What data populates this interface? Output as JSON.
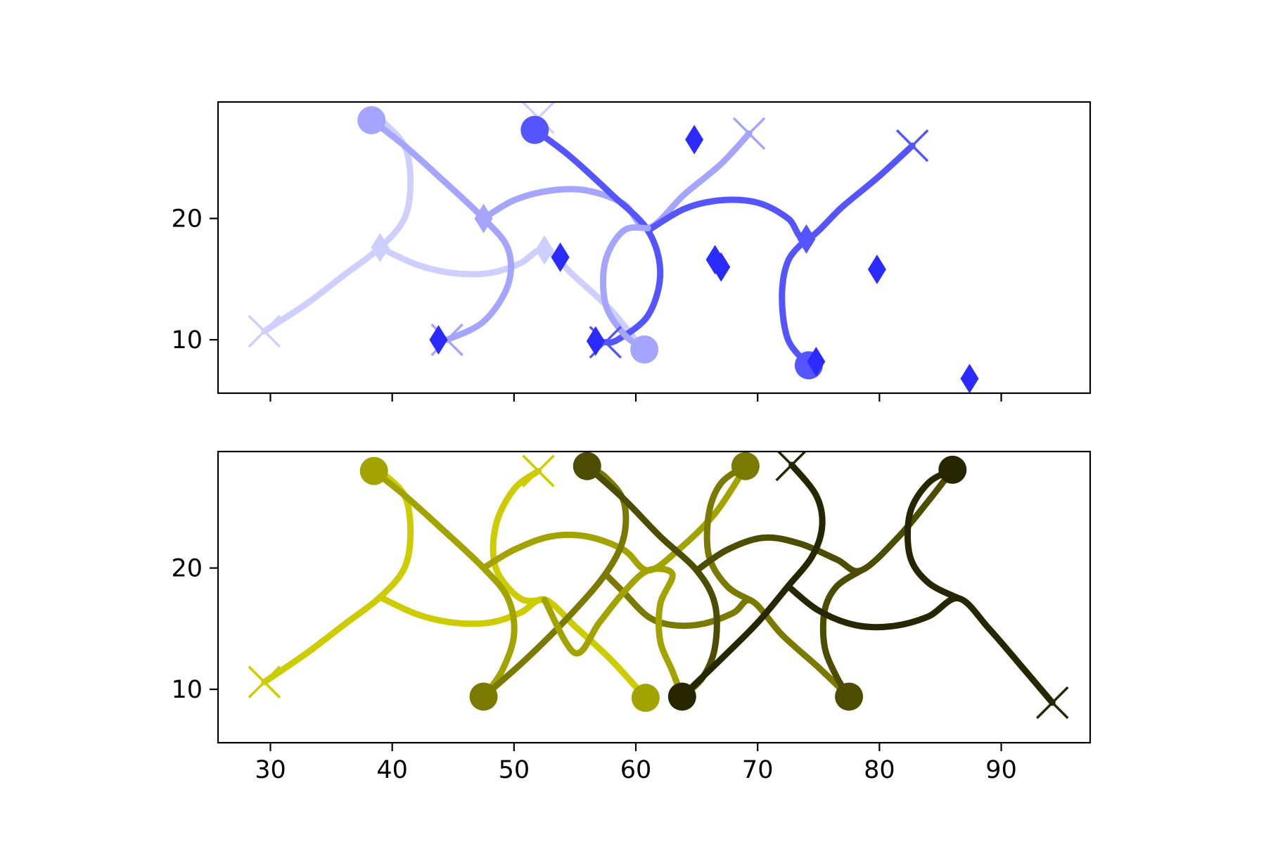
{
  "chart_data": [
    {
      "type": "line",
      "title": "",
      "xlabel": "",
      "ylabel": "",
      "xlim": [
        25.7,
        97.3
      ],
      "ylim": [
        5.6,
        29.6
      ],
      "xticks": [
        30,
        40,
        50,
        60,
        70,
        80,
        90
      ],
      "show_xtick_labels": false,
      "yticks": [
        10,
        20
      ],
      "ytick_labels": [
        "10",
        "20"
      ],
      "grid": false,
      "legend": "none",
      "series": [
        {
          "color": "#cfcfff",
          "points": [
            [
              29.5,
              10.7
            ],
            [
              33,
              13
            ],
            [
              36,
              15.3
            ],
            [
              39,
              17.6
            ],
            [
              41,
              20
            ],
            [
              41.5,
              23
            ],
            [
              41,
              26
            ],
            [
              39,
              28.2
            ]
          ],
          "extra_path": [
            [
              39,
              17.6
            ],
            [
              42,
              16.2
            ],
            [
              45,
              15.5
            ],
            [
              48,
              15.5
            ],
            [
              50.5,
              16.3
            ],
            [
              52.5,
              17.4
            ],
            [
              55,
              15.2
            ],
            [
              58,
              12.4
            ],
            [
              60.5,
              9.3
            ]
          ],
          "markers": [
            {
              "x": 29.5,
              "y": 10.7,
              "shape": "x"
            },
            {
              "x": 39,
              "y": 17.6,
              "shape": "diamond"
            },
            {
              "x": 52.5,
              "y": 17.4,
              "shape": "diamond"
            },
            {
              "x": 52,
              "y": 28.3,
              "shape": "x"
            }
          ]
        },
        {
          "color": "#a5a5ff",
          "points": [
            [
              38.3,
              28.1
            ],
            [
              41,
              26
            ],
            [
              44,
              23.3
            ],
            [
              47.5,
              20
            ],
            [
              49.5,
              17.5
            ],
            [
              49.5,
              14.5
            ],
            [
              47.5,
              11.5
            ],
            [
              44.5,
              10
            ]
          ],
          "extra_path": [
            [
              47.5,
              20
            ],
            [
              50,
              21.5
            ],
            [
              53,
              22.3
            ],
            [
              56,
              22.3
            ],
            [
              59,
              21.2
            ],
            [
              61,
              19.2
            ],
            [
              64,
              22
            ],
            [
              67,
              24.5
            ],
            [
              69.3,
              27
            ]
          ],
          "markers": [
            {
              "x": 38.3,
              "y": 28.1,
              "shape": "circle"
            },
            {
              "x": 44.5,
              "y": 10,
              "shape": "x"
            },
            {
              "x": 47.5,
              "y": 20,
              "shape": "diamond"
            },
            {
              "x": 69.3,
              "y": 27,
              "shape": "x"
            }
          ]
        },
        {
          "color": "#5555ff",
          "points": [
            [
              51.7,
              27.3
            ],
            [
              54.5,
              25.2
            ],
            [
              58,
              22
            ],
            [
              61,
              19
            ],
            [
              62,
              15.5
            ],
            [
              61,
              12
            ],
            [
              58.5,
              10
            ],
            [
              57.5,
              9.8
            ]
          ],
          "extra_path": [
            [
              61,
              19
            ],
            [
              64,
              20.8
            ],
            [
              67,
              21.5
            ],
            [
              70,
              21.3
            ],
            [
              72.5,
              20
            ],
            [
              74,
              18.3
            ],
            [
              77,
              21
            ],
            [
              80,
              23.5
            ],
            [
              82.7,
              26
            ]
          ],
          "markers": [
            {
              "x": 51.7,
              "y": 27.3,
              "shape": "circle"
            },
            {
              "x": 57.5,
              "y": 9.8,
              "shape": "x"
            },
            {
              "x": 74,
              "y": 18.3,
              "shape": "diamond"
            },
            {
              "x": 82.7,
              "y": 26,
              "shape": "x"
            }
          ]
        },
        {
          "color": "#a5a5ff",
          "points": [
            [
              60.7,
              9.2
            ],
            [
              59,
              10.5
            ],
            [
              57.5,
              13
            ],
            [
              57.5,
              16.5
            ],
            [
              59,
              19
            ],
            [
              61,
              19.2
            ]
          ],
          "markers": [
            {
              "x": 60.7,
              "y": 9.2,
              "shape": "circle"
            }
          ]
        },
        {
          "color": "#5555ff",
          "points": [
            [
              74.2,
              7.9
            ],
            [
              72.5,
              10
            ],
            [
              72,
              13.5
            ],
            [
              72.5,
              16.5
            ],
            [
              74,
              18.3
            ]
          ],
          "markers": [
            {
              "x": 74.2,
              "y": 7.9,
              "shape": "circle"
            }
          ]
        },
        {
          "color": "#2b2bff",
          "points": [],
          "markers": [
            {
              "x": 64.8,
              "y": 26.5,
              "shape": "diamond"
            },
            {
              "x": 53.8,
              "y": 16.8,
              "shape": "diamond"
            },
            {
              "x": 66.5,
              "y": 16.6,
              "shape": "diamond"
            },
            {
              "x": 67.0,
              "y": 16.0,
              "shape": "diamond"
            },
            {
              "x": 43.8,
              "y": 10.0,
              "shape": "diamond"
            },
            {
              "x": 56.7,
              "y": 9.9,
              "shape": "diamond"
            },
            {
              "x": 79.8,
              "y": 15.8,
              "shape": "diamond"
            },
            {
              "x": 87.4,
              "y": 6.8,
              "shape": "diamond"
            },
            {
              "x": 74.8,
              "y": 8.2,
              "shape": "diamond"
            }
          ]
        }
      ]
    },
    {
      "type": "line",
      "title": "",
      "xlabel": "",
      "ylabel": "",
      "xlim": [
        25.7,
        97.3
      ],
      "ylim": [
        5.6,
        29.6
      ],
      "xticks": [
        30,
        40,
        50,
        60,
        70,
        80,
        90
      ],
      "xtick_labels": [
        "30",
        "40",
        "50",
        "60",
        "70",
        "80",
        "90"
      ],
      "show_xtick_labels": true,
      "yticks": [
        10,
        20
      ],
      "ytick_labels": [
        "10",
        "20"
      ],
      "grid": false,
      "legend": "none",
      "series": [
        {
          "color": "#cccc00",
          "points": [
            [
              29.5,
              10.6
            ],
            [
              33,
              13
            ],
            [
              36,
              15.3
            ],
            [
              39,
              17.6
            ],
            [
              41,
              20
            ],
            [
              41.5,
              23
            ],
            [
              41,
              26
            ],
            [
              39,
              28
            ]
          ],
          "extra_path": [
            [
              39,
              17.6
            ],
            [
              42,
              16.2
            ],
            [
              45,
              15.5
            ],
            [
              48,
              15.5
            ],
            [
              50.5,
              16.3
            ],
            [
              52.5,
              17.4
            ],
            [
              55,
              15.2
            ],
            [
              58,
              12.4
            ],
            [
              60.8,
              9.3
            ]
          ],
          "markers": [
            {
              "x": 29.5,
              "y": 10.6,
              "shape": "x"
            },
            {
              "x": 52,
              "y": 28,
              "shape": "x"
            }
          ]
        },
        {
          "color": "#cccc00",
          "points": [
            [
              52,
              28
            ],
            [
              50,
              26.5
            ],
            [
              48.5,
              23.5
            ],
            [
              48.5,
              20
            ],
            [
              50.5,
              17.5
            ],
            [
              52.5,
              17.4
            ]
          ],
          "markers": []
        },
        {
          "color": "#a3a300",
          "points": [
            [
              38.5,
              28
            ],
            [
              41,
              26
            ],
            [
              44,
              23.3
            ],
            [
              47.5,
              20
            ],
            [
              49.5,
              17.5
            ],
            [
              50,
              14.5
            ],
            [
              49,
              11.5
            ],
            [
              47.5,
              9.4
            ]
          ],
          "extra_path": [
            [
              47.5,
              20
            ],
            [
              50,
              21.5
            ],
            [
              53,
              22.6
            ],
            [
              56,
              22.6
            ],
            [
              59,
              21.5
            ],
            [
              61,
              19.8
            ],
            [
              63.5,
              21.5
            ],
            [
              66.5,
              24.5
            ],
            [
              69,
              28.3
            ]
          ],
          "markers": [
            {
              "x": 38.5,
              "y": 28,
              "shape": "circle"
            },
            {
              "x": 60.8,
              "y": 9.3,
              "shape": "circle"
            }
          ]
        },
        {
          "color": "#7a7a00",
          "points": [
            [
              47.5,
              9.4
            ],
            [
              51,
              12.5
            ],
            [
              54.5,
              16
            ],
            [
              57.5,
              19.5
            ],
            [
              59,
              22.5
            ],
            [
              59,
              25.5
            ],
            [
              57.5,
              27.5
            ],
            [
              56,
              28.4
            ]
          ],
          "extra_path": [
            [
              57.5,
              19.5
            ],
            [
              59,
              18
            ],
            [
              61,
              16
            ],
            [
              63,
              15.3
            ],
            [
              65.5,
              15.4
            ],
            [
              68,
              16.3
            ],
            [
              69.5,
              17.3
            ],
            [
              72,
              14.5
            ],
            [
              75,
              11.8
            ],
            [
              77.5,
              9.4
            ]
          ],
          "markers": [
            {
              "x": 47.5,
              "y": 9.4,
              "shape": "circle"
            },
            {
              "x": 69,
              "y": 28.4,
              "shape": "circle"
            }
          ]
        },
        {
          "color": "#7a7a00",
          "points": [
            [
              69,
              28.4
            ],
            [
              67,
              27
            ],
            [
              66,
              24.5
            ],
            [
              66,
              21
            ],
            [
              67.5,
              18.5
            ],
            [
              69.5,
              17.3
            ]
          ],
          "markers": []
        },
        {
          "color": "#a3a300",
          "points": [
            [
              63.8,
              9.4
            ],
            [
              63,
              11.5
            ],
            [
              62,
              14
            ],
            [
              62,
              17
            ],
            [
              63,
              19.5
            ],
            [
              61,
              19.8
            ],
            [
              59,
              18
            ],
            [
              57,
              15.5
            ],
            [
              55,
              13
            ],
            [
              52.5,
              17.4
            ]
          ],
          "markers": []
        },
        {
          "color": "#4d4d00",
          "points": [
            [
              56,
              28.4
            ],
            [
              59,
              25.7
            ],
            [
              62,
              22.6
            ],
            [
              65,
              19.8
            ],
            [
              66.5,
              17
            ],
            [
              66.5,
              13.5
            ],
            [
              65.5,
              11
            ],
            [
              63.8,
              9.4
            ]
          ],
          "extra_path": [
            [
              65,
              19.8
            ],
            [
              67.5,
              21.5
            ],
            [
              70.5,
              22.5
            ],
            [
              73.5,
              22
            ],
            [
              76.5,
              20.7
            ],
            [
              78.5,
              19.8
            ],
            [
              81.5,
              22.5
            ],
            [
              84,
              25.5
            ],
            [
              86,
              28.1
            ]
          ],
          "markers": [
            {
              "x": 56,
              "y": 28.4,
              "shape": "circle"
            },
            {
              "x": 77.5,
              "y": 9.4,
              "shape": "circle"
            }
          ]
        },
        {
          "color": "#4d4d00",
          "points": [
            [
              77.5,
              9.4
            ],
            [
              76.5,
              11
            ],
            [
              75.5,
              13.5
            ],
            [
              75.5,
              16.5
            ],
            [
              76.5,
              18.5
            ],
            [
              78.5,
              19.8
            ]
          ],
          "markers": []
        },
        {
          "color": "#262600",
          "points": [
            [
              63.8,
              9.4
            ],
            [
              67,
              12.5
            ],
            [
              70,
              15.5
            ],
            [
              72.5,
              18.5
            ],
            [
              74.5,
              21
            ],
            [
              75.3,
              23.5
            ],
            [
              74.8,
              26
            ],
            [
              72.8,
              28.5
            ]
          ],
          "extra_path": [
            [
              72.5,
              18.5
            ],
            [
              75,
              16.5
            ],
            [
              78,
              15.3
            ],
            [
              81,
              15.2
            ],
            [
              84,
              16
            ],
            [
              86.5,
              17.5
            ],
            [
              89,
              15
            ],
            [
              92,
              11.5
            ],
            [
              94.2,
              8.9
            ]
          ],
          "markers": [
            {
              "x": 63.8,
              "y": 9.4,
              "shape": "circle"
            },
            {
              "x": 86,
              "y": 28.1,
              "shape": "circle"
            },
            {
              "x": 72.8,
              "y": 28.5,
              "shape": "x"
            },
            {
              "x": 94.2,
              "y": 8.9,
              "shape": "x"
            }
          ]
        },
        {
          "color": "#262600",
          "points": [
            [
              86,
              28.1
            ],
            [
              84,
              27
            ],
            [
              82.5,
              24.5
            ],
            [
              82.5,
              21
            ],
            [
              84,
              18.8
            ],
            [
              86.5,
              17.5
            ]
          ],
          "markers": []
        }
      ]
    }
  ]
}
